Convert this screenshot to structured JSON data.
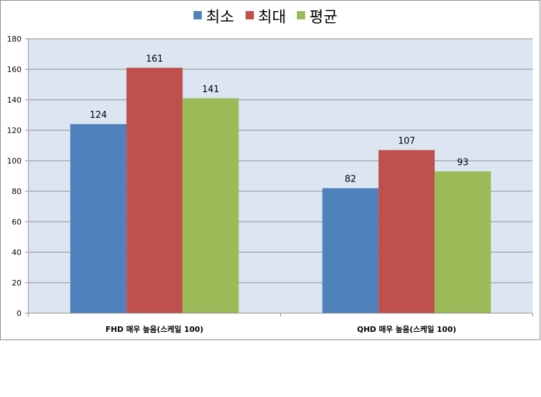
{
  "chart_data": {
    "type": "bar",
    "categories": [
      "FHD 매우 높음(스케일 100)",
      "QHD 매우 높음(스케일 100)"
    ],
    "series": [
      {
        "name": "최소",
        "values": [
          124,
          82
        ],
        "color": "#4f81bd"
      },
      {
        "name": "최대",
        "values": [
          161,
          107
        ],
        "color": "#c0504d"
      },
      {
        "name": "평균",
        "values": [
          141,
          93
        ],
        "color": "#9bbb59"
      }
    ],
    "ylim": [
      0,
      180
    ],
    "yticks": [
      0,
      20,
      40,
      60,
      80,
      100,
      120,
      140,
      160,
      180
    ],
    "grid": true,
    "legend_position": "top",
    "plot_background": "#dce6f2",
    "gridline_color": "#8c8c8c"
  }
}
